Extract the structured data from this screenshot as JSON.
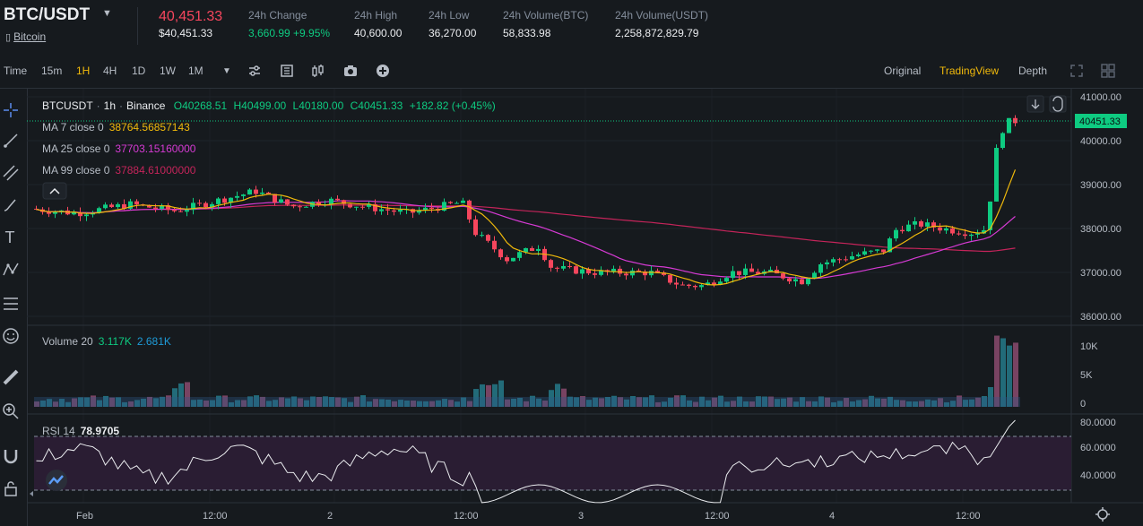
{
  "header": {
    "pair": "BTC/USDT",
    "coin_name": "Bitcoin",
    "last_price": "40,451.33",
    "last_price_usd": "$40,451.33",
    "stats": [
      {
        "label": "24h Change",
        "value": "3,660.99 +9.95%",
        "color": "#0ecb81"
      },
      {
        "label": "24h High",
        "value": "40,600.00",
        "color": "#eaecef"
      },
      {
        "label": "24h Low",
        "value": "36,270.00",
        "color": "#eaecef"
      },
      {
        "label": "24h Volume(BTC)",
        "value": "58,833.98",
        "color": "#eaecef"
      },
      {
        "label": "24h Volume(USDT)",
        "value": "2,258,872,829.79",
        "color": "#eaecef"
      }
    ]
  },
  "toolbar": {
    "time_label": "Time",
    "intervals": [
      "15m",
      "1H",
      "4H",
      "1D",
      "1W",
      "1M"
    ],
    "active_interval": "1H",
    "views": [
      "Original",
      "TradingView",
      "Depth"
    ],
    "active_view": "TradingView"
  },
  "legend": {
    "symbol": "BTCUSDT",
    "interval": "1h",
    "exchange": "Binance",
    "open": "O40268.51",
    "high": "H40499.00",
    "low": "L40180.00",
    "close": "C40451.33",
    "change": "+182.82 (+0.45%)",
    "ma": [
      {
        "label": "MA 7 close 0",
        "value": "38764.56857143",
        "color": "#f0b90b"
      },
      {
        "label": "MA 25 close 0",
        "value": "37703.15160000",
        "color": "#d63ad4"
      },
      {
        "label": "MA 99 close 0",
        "value": "37884.61000000",
        "color": "#c4245a"
      }
    ],
    "volume_label": "Volume 20",
    "volume_v1": "3.117K",
    "volume_v2": "2.681K",
    "rsi_label": "RSI 14",
    "rsi_value": "78.9705"
  },
  "price_axis": {
    "labels": [
      "41000.00",
      "40000.00",
      "39000.00",
      "38000.00",
      "37000.00",
      "36000.00"
    ],
    "current": "40451.33"
  },
  "volume_axis": {
    "labels": [
      "10K",
      "5K",
      "0"
    ]
  },
  "rsi_axis": {
    "labels": [
      "80.0000",
      "60.0000",
      "40.0000"
    ]
  },
  "time_axis": {
    "labels": [
      "Feb",
      "12:00",
      "2",
      "12:00",
      "3",
      "12:00",
      "4",
      "12:00"
    ]
  },
  "colors": {
    "up": "#0ecb81",
    "down": "#f6465d",
    "accent": "#f0b90b",
    "bg": "#161a1e",
    "grid": "#2b3139"
  }
}
